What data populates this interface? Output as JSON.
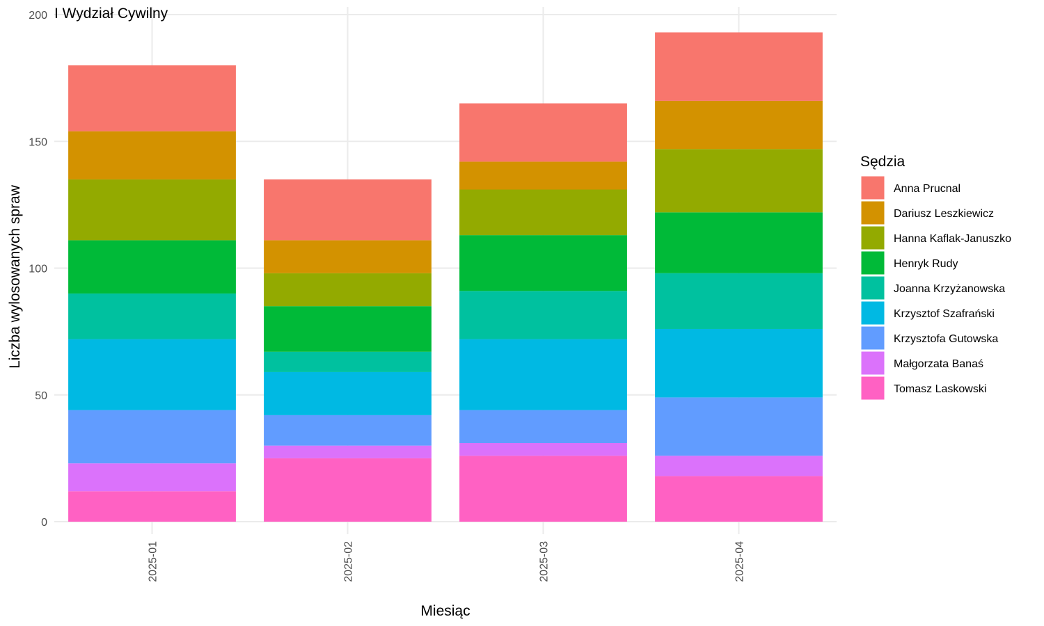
{
  "chart_data": {
    "type": "bar",
    "stacked": true,
    "title": "I Wydział Cywilny",
    "xlabel": "Miesiąc",
    "ylabel": "Liczba wylosowanych spraw",
    "ylim": [
      0,
      200
    ],
    "y_ticks": [
      0,
      50,
      100,
      150,
      200
    ],
    "grid": true,
    "legend_title": "Sędzia",
    "legend_position": "right",
    "categories": [
      "2025-01",
      "2025-02",
      "2025-03",
      "2025-04"
    ],
    "series": [
      {
        "name": "Tomasz Laskowski",
        "color": "#FF61C3",
        "values": [
          12,
          25,
          26,
          18
        ]
      },
      {
        "name": "Małgorzata Banaś",
        "color": "#DB72FB",
        "values": [
          11,
          5,
          5,
          8
        ]
      },
      {
        "name": "Krzysztofa Gutowska",
        "color": "#619CFF",
        "values": [
          21,
          12,
          13,
          23
        ]
      },
      {
        "name": "Krzysztof Szafrański",
        "color": "#00B9E3",
        "values": [
          28,
          17,
          28,
          27
        ]
      },
      {
        "name": "Joanna Krzyżanowska",
        "color": "#00C19F",
        "values": [
          18,
          8,
          19,
          22
        ]
      },
      {
        "name": "Henryk Rudy",
        "color": "#00BA38",
        "values": [
          21,
          18,
          22,
          24
        ]
      },
      {
        "name": "Hanna Kaflak-Januszko",
        "color": "#93AA00",
        "values": [
          24,
          13,
          18,
          25
        ]
      },
      {
        "name": "Dariusz Leszkiewicz",
        "color": "#D39200",
        "values": [
          19,
          13,
          11,
          19
        ]
      },
      {
        "name": "Anna Prucnal",
        "color": "#F8766D",
        "values": [
          26,
          24,
          23,
          27
        ]
      }
    ]
  }
}
